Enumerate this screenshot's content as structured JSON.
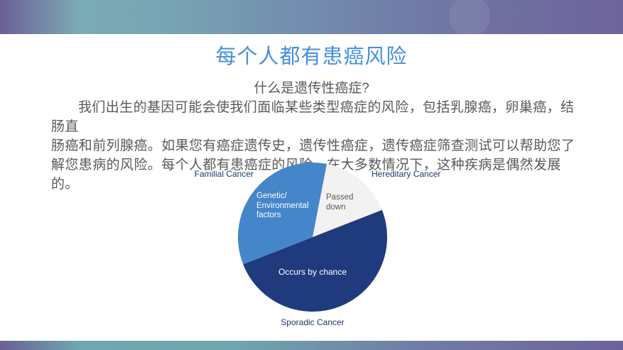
{
  "slide": {
    "title": "每个人都有患癌风险",
    "subtitle": "什么是遗传性癌症?",
    "body_lines": [
      "我们出生的基因可能会使我们面临某些类型癌症的风险，包括乳腺癌，卵巢癌，结肠直",
      "肠癌和前列腺癌。如果您有癌症遗传史，遗传性癌症，遗传癌症筛查测试可以帮助您了",
      "解您患病的风险。每个人都有患癌症的风险，在大多数情况下，这种疾病是偶然发展的。"
    ]
  },
  "colors": {
    "title_blue": "#4491dc",
    "body_text_gray": "#595959",
    "label_navy": "#1f3864",
    "pie_light_blue": "#4486c9",
    "pie_dark_blue": "#1f3b7d",
    "pie_gray": "#f2f2f2",
    "bar_purple": "#6c6096",
    "bar_teal": "#7bacb5"
  },
  "chart_data": {
    "type": "pie",
    "title": "",
    "start_angle_deg": 11,
    "legend_position": "outside-callout-labels",
    "slices": [
      {
        "name": "Hereditary Cancer",
        "inner_label": "Passed\ndown",
        "value_pct": 16,
        "color": "#f2f2f2"
      },
      {
        "name": "Sporadic Cancer",
        "inner_label": "Occurs by chance",
        "value_pct": 50,
        "color": "#1f3b7d"
      },
      {
        "name": "Familial Cancer",
        "inner_label": "Genetic/\nEnvironmental\nfactors",
        "value_pct": 34,
        "color": "#4486c9"
      }
    ],
    "labels": {
      "familial": "Familial Cancer",
      "hereditary": "Hereditary Cancer",
      "sporadic": "Sporadic Cancer",
      "genetic": "Genetic/\nEnvironmental\nfactors",
      "passed": "Passed\ndown",
      "chance": "Occurs by chance"
    }
  }
}
